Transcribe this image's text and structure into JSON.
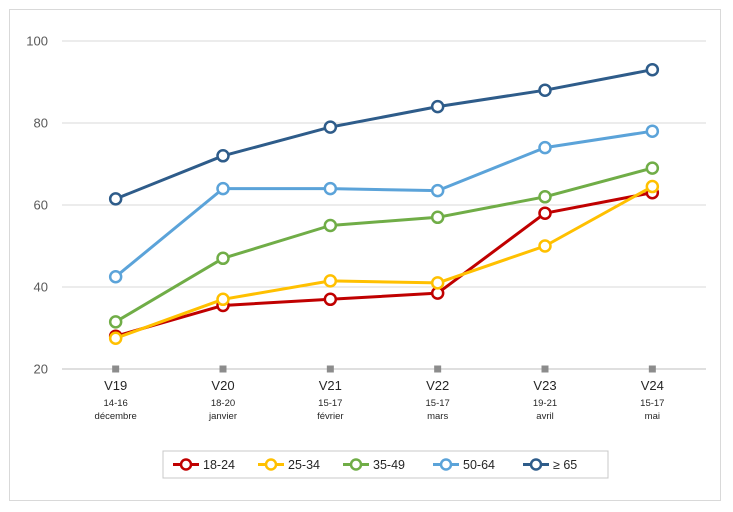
{
  "chart_data": {
    "type": "line",
    "title": "",
    "xlabel": "",
    "ylabel": "",
    "ylim": [
      20,
      100
    ],
    "yticks": [
      20,
      40,
      60,
      80,
      100
    ],
    "grid": true,
    "legend_position": "bottom",
    "categories": [
      {
        "label": "V19",
        "sub1": "14-16",
        "sub2": "décembre"
      },
      {
        "label": "V20",
        "sub1": "18-20",
        "sub2": "janvier"
      },
      {
        "label": "V21",
        "sub1": "15-17",
        "sub2": "février"
      },
      {
        "label": "V22",
        "sub1": "15-17",
        "sub2": "mars"
      },
      {
        "label": "V23",
        "sub1": "19-21",
        "sub2": "avril"
      },
      {
        "label": "V24",
        "sub1": "15-17",
        "sub2": "mai"
      }
    ],
    "series": [
      {
        "name": "18-24",
        "color": "#c00000",
        "values": [
          28,
          35.5,
          37,
          38.5,
          58,
          63
        ]
      },
      {
        "name": "25-34",
        "color": "#ffc000",
        "values": [
          27.5,
          37,
          41.5,
          41,
          50,
          64.5
        ]
      },
      {
        "name": "35-49",
        "color": "#70ad47",
        "values": [
          31.5,
          47,
          55,
          57,
          62,
          69
        ]
      },
      {
        "name": "50-64",
        "color": "#5ba3d9",
        "values": [
          42.5,
          64,
          64,
          63.5,
          74,
          78
        ]
      },
      {
        "name": "≥ 65",
        "color": "#2e5c8a",
        "values": [
          61.5,
          72,
          79,
          84,
          88,
          93
        ]
      }
    ]
  }
}
